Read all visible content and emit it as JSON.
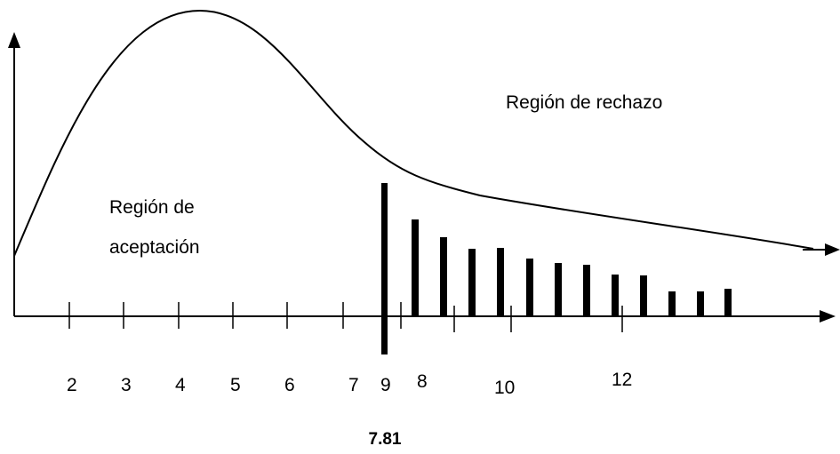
{
  "figure": {
    "acceptance_region_label_line1": "Región de",
    "acceptance_region_label_line2": "aceptación",
    "rejection_region_label": "Región de rechazo",
    "critical_value_label": "7.81",
    "axis_numbers": [
      "2",
      "3",
      "4",
      "5",
      "6",
      "7",
      "9",
      "8",
      "10",
      "12"
    ],
    "hatch_bar_count": 12
  }
}
